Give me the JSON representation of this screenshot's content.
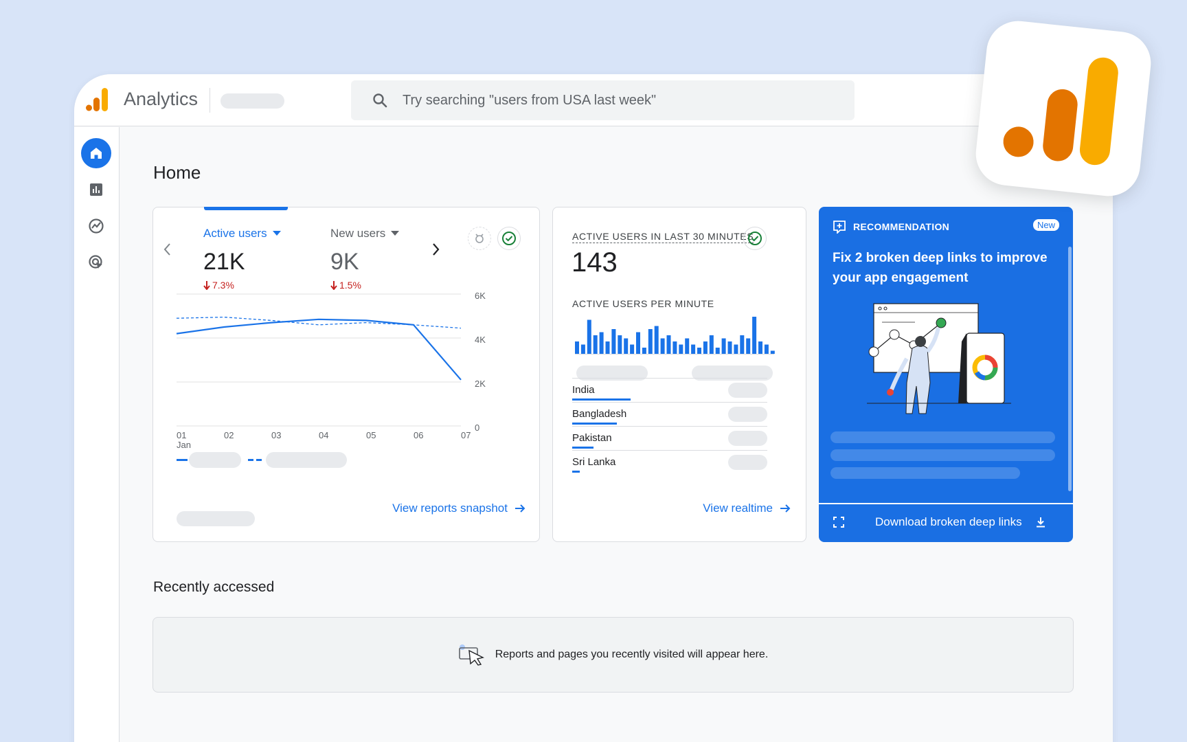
{
  "app": {
    "title": "Analytics"
  },
  "search": {
    "placeholder": "Try searching \"users from USA last week\""
  },
  "sidebar": {
    "items": [
      {
        "name": "home",
        "icon": "home-icon",
        "active": true
      },
      {
        "name": "reports",
        "icon": "bar-chart-icon"
      },
      {
        "name": "explore",
        "icon": "explore-icon"
      },
      {
        "name": "advertising",
        "icon": "advertising-icon"
      }
    ]
  },
  "page": {
    "title": "Home"
  },
  "overview_card": {
    "metrics": [
      {
        "label": "Active users",
        "value": "21K",
        "delta": "7.3%"
      },
      {
        "label": "New users",
        "value": "9K",
        "delta": "1.5%"
      }
    ],
    "link": "View reports snapshot"
  },
  "chart_data": {
    "type": "line",
    "x": [
      "01",
      "02",
      "03",
      "04",
      "05",
      "06",
      "07"
    ],
    "x_sublabel": "Jan",
    "y_ticks": [
      "6K",
      "4K",
      "2K",
      "0"
    ],
    "ylim": [
      0,
      6000
    ],
    "series": [
      {
        "style": "solid",
        "values": [
          4200,
          4500,
          4700,
          4850,
          4800,
          4600,
          2100
        ]
      },
      {
        "style": "dashed",
        "values": [
          4900,
          4950,
          4800,
          4600,
          4700,
          4600,
          4450
        ]
      }
    ]
  },
  "realtime_card": {
    "heading": "ACTIVE USERS IN LAST 30 MINUTES",
    "count": "143",
    "per_minute_label": "ACTIVE USERS PER MINUTE",
    "per_minute_bars": [
      4,
      3,
      11,
      6,
      7,
      4,
      8,
      6,
      5,
      3,
      7,
      2,
      8,
      9,
      5,
      6,
      4,
      3,
      5,
      3,
      2,
      4,
      6,
      2,
      5,
      4,
      3,
      6,
      5,
      12,
      4,
      3,
      1
    ],
    "countries": [
      {
        "name": "India",
        "share": 0.3
      },
      {
        "name": "Bangladesh",
        "share": 0.23
      },
      {
        "name": "Pakistan",
        "share": 0.11
      },
      {
        "name": "Sri Lanka",
        "share": 0.04
      }
    ],
    "link": "View realtime"
  },
  "recommendation_card": {
    "label": "RECOMMENDATION",
    "badge": "New",
    "title": "Fix 2 broken deep links to improve your app engagement",
    "action": "Download broken deep links",
    "colors": {
      "background": "#1a6fe3"
    }
  },
  "recent": {
    "title": "Recently accessed",
    "empty_message": "Reports and pages you recently visited will appear here."
  },
  "colors": {
    "brand_orange": "#e37400",
    "brand_yellow": "#f9ab00",
    "accent": "#1a73e8",
    "negative": "#c5221f"
  }
}
